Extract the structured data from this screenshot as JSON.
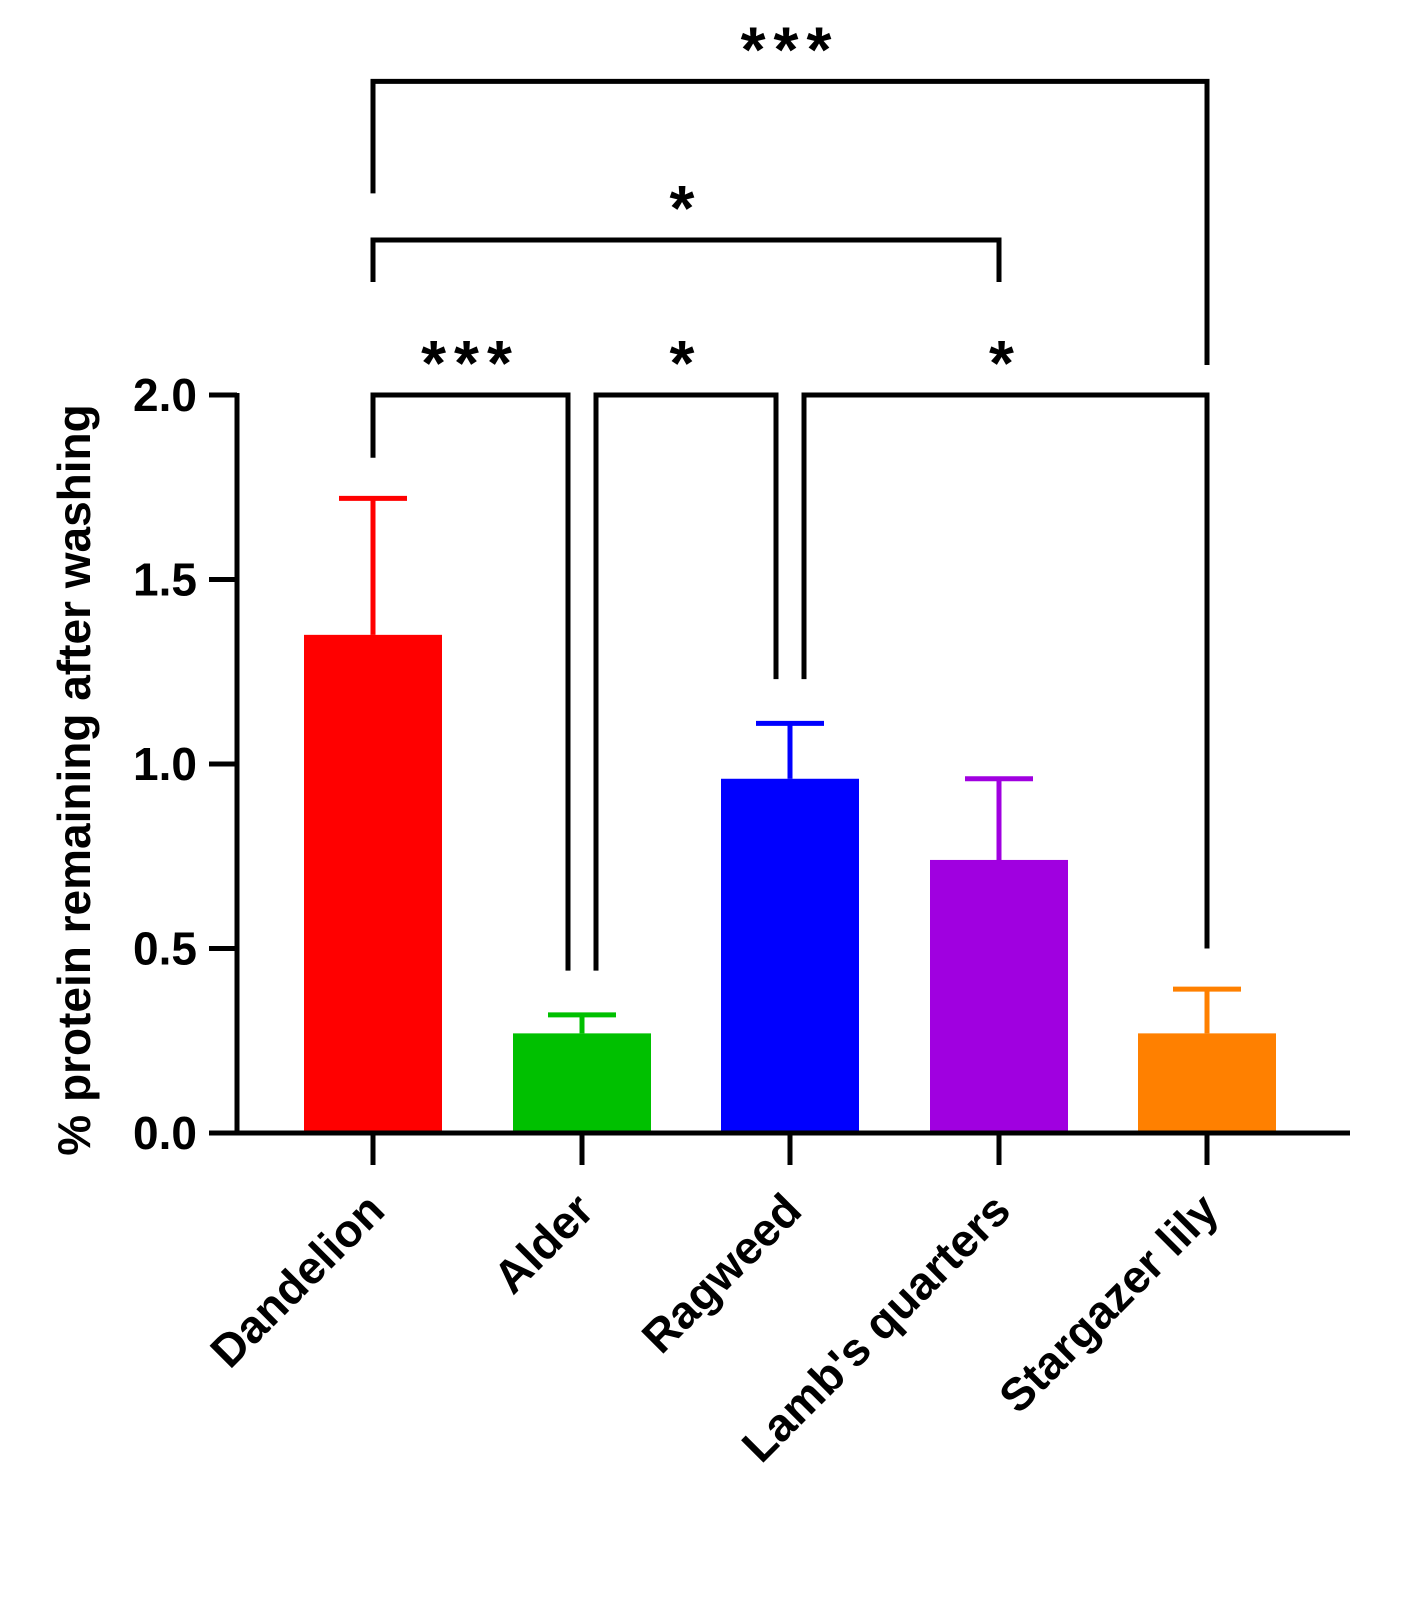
{
  "chart_data": {
    "type": "bar",
    "title": "",
    "xlabel": "",
    "ylabel": "% protein remaining after washing",
    "ylim": [
      0,
      2.0
    ],
    "yticks": [
      0.0,
      0.5,
      1.0,
      1.5,
      2.0
    ],
    "ytick_labels": [
      "0.0",
      "0.5",
      "1.0",
      "1.5",
      "2.0"
    ],
    "categories": [
      "Dandelion",
      "Alder",
      "Ragweed",
      "Lamb's quarters",
      "Stargazer lily"
    ],
    "values": [
      1.35,
      0.27,
      0.96,
      0.74,
      0.27
    ],
    "errors": [
      0.37,
      0.05,
      0.15,
      0.22,
      0.12
    ],
    "colors": [
      "#ff0000",
      "#00c000",
      "#0000ff",
      "#a000e0",
      "#ff8000"
    ],
    "grid": false,
    "significance": [
      {
        "from": 0,
        "to": 1,
        "label": "***",
        "level": 2.0
      },
      {
        "from": 1,
        "to": 2,
        "label": "*",
        "level": 2.0
      },
      {
        "from": 2,
        "to": 4,
        "label": "*",
        "level": 2.0
      },
      {
        "from": 0,
        "to": 3,
        "label": "*",
        "level": 2.42
      },
      {
        "from": 0,
        "to": 4,
        "label": "***",
        "level": 2.85
      }
    ]
  }
}
